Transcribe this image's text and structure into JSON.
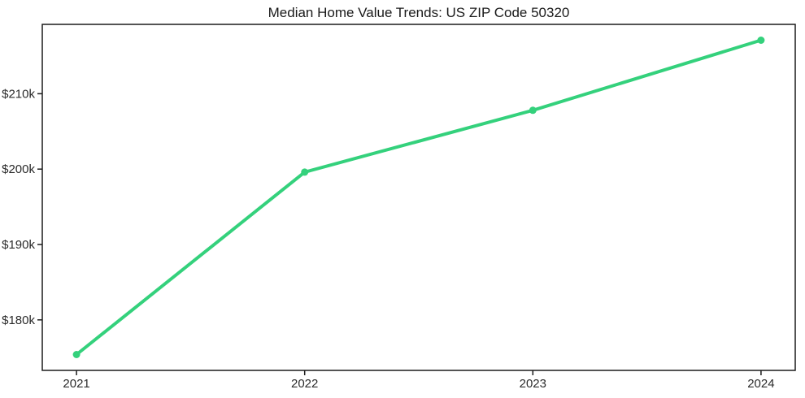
{
  "title": "Median Home Value Trends: US ZIP Code 50320",
  "colors": {
    "background": "#ffffff",
    "line": "#34d17c",
    "axis": "#1c1c1c",
    "tick_text": "#2b2b2b",
    "title_text": "#1a1a1a"
  },
  "chart_data": {
    "type": "line",
    "title": "Median Home Value Trends: US ZIP Code 50320",
    "xlabel": "",
    "ylabel": "",
    "x": [
      2021,
      2022,
      2023,
      2024
    ],
    "x_tick_labels": [
      "2021",
      "2022",
      "2023",
      "2024"
    ],
    "series": [
      {
        "name": "Median Home Value",
        "values": [
          175400,
          199600,
          207800,
          217100
        ]
      }
    ],
    "y_ticks": [
      180000,
      190000,
      200000,
      210000
    ],
    "y_tick_labels": [
      "$180k",
      "$190k",
      "$200k",
      "$210k"
    ],
    "xlim": [
      2020.85,
      2024.15
    ],
    "ylim": [
      173300,
      219200
    ],
    "grid": false,
    "legend_position": "none",
    "marker": "circle",
    "line_color": "#34d17c",
    "line_width": 4,
    "marker_radius": 4.5
  }
}
